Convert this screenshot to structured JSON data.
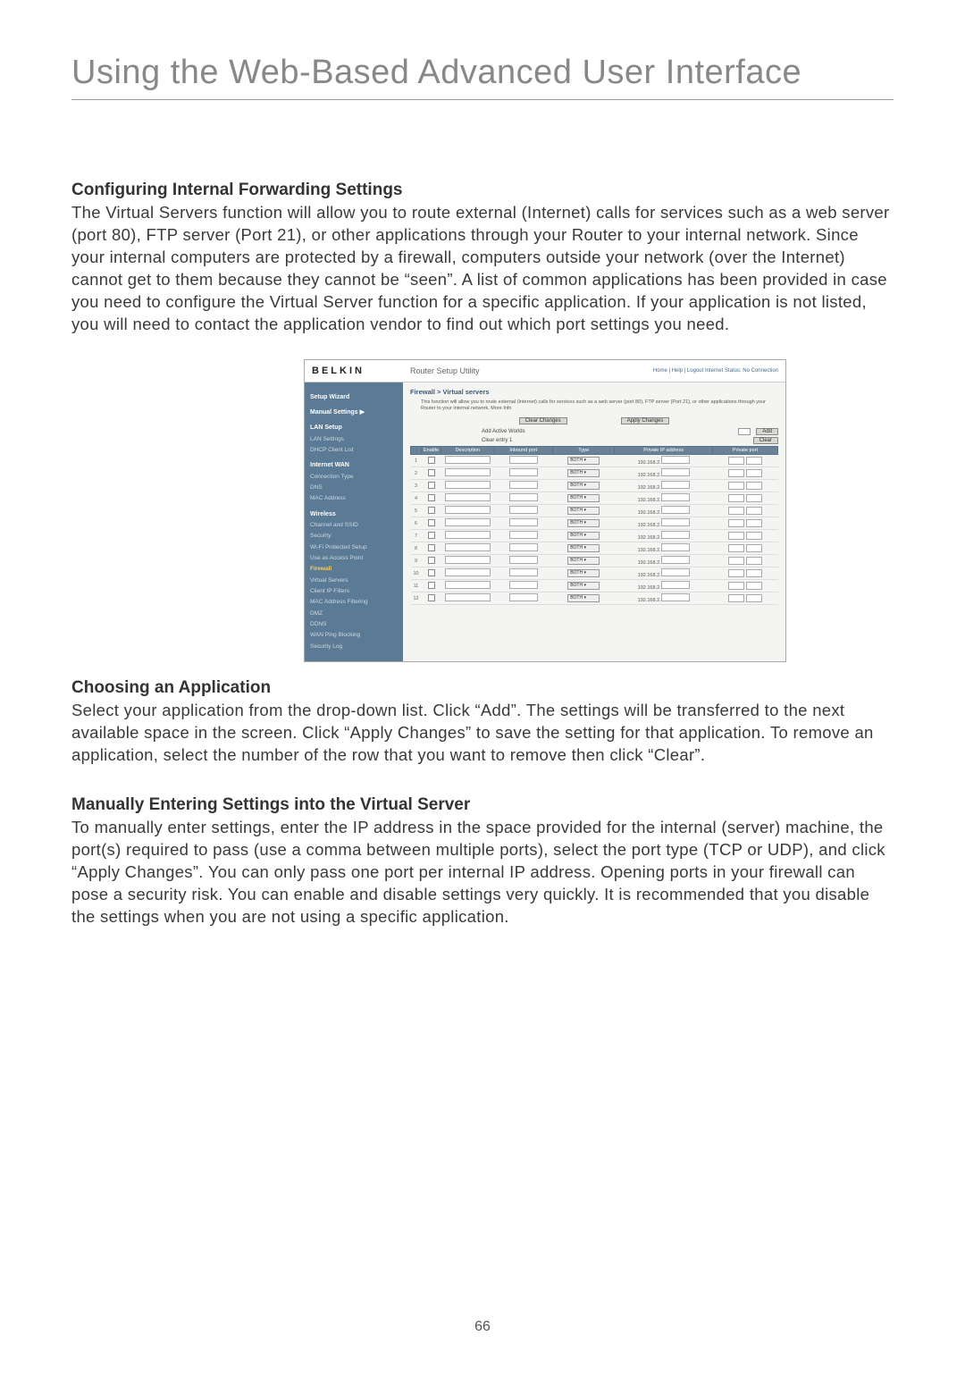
{
  "header": {
    "title": "Using the Web-Based Advanced User Interface"
  },
  "sections": {
    "s1": {
      "heading": "Configuring Internal Forwarding Settings",
      "body": "The Virtual Servers function will allow you to route external (Internet) calls for services such as a web server (port 80), FTP server (Port 21), or other applications through your Router to your internal network. Since your internal computers are protected by a firewall, computers outside your network (over the Internet) cannot get to them because they cannot be “seen”. A list of common applications has been provided in case you need to configure the Virtual Server function for a specific application. If your application is not listed, you will need to contact the application vendor to find out which port settings you need."
    },
    "s2": {
      "heading": "Choosing an Application",
      "body": "Select your application from the drop-down list. Click “Add”. The settings will be transferred to the next available space in the screen. Click “Apply Changes” to save the setting for that application. To remove an application, select the number of the row that you want to remove then click “Clear”."
    },
    "s3": {
      "heading": "Manually Entering Settings into the Virtual Server",
      "body": "To manually enter settings, enter the IP address in the space provided for the internal (server) machine, the port(s) required to pass (use a comma between multiple ports), select the port type (TCP or UDP), and click “Apply Changes”. You can only pass one port per internal IP address. Opening ports in your firewall can pose a security risk. You can enable and disable settings very quickly. It is recommended that you disable the settings when you are not using a specific application."
    }
  },
  "screenshot": {
    "brand": "BELKIN",
    "utility_title": "Router Setup Utility",
    "toplinks": "Home | Help | Logout    Internet Status: No Connection",
    "breadcrumb": "Firewall > Virtual servers",
    "desc": "This function will allow you to route external (Internet) calls for services such as a web server (port 80), FTP server (Port 21), or other applications through your Router to your internal network. More Info",
    "buttons": {
      "clear_changes": "Clear Changes",
      "apply_changes": "Apply Changes",
      "add": "Add",
      "clear": "Clear"
    },
    "labels": {
      "add_active": "Add Active Worlds",
      "clear_entry": "Clear entry  1"
    },
    "table": {
      "headers": [
        "",
        "Enable",
        "Description",
        "Inbound port",
        "Type",
        "Private IP address",
        "Private port"
      ],
      "type_value": "BOTH",
      "ip_prefix": "192.168.2.",
      "row_count": 12
    },
    "sidebar": {
      "items": [
        {
          "t": "Setup Wizard",
          "cls": "sb-head"
        },
        {
          "t": "",
          "cls": "sb-item"
        },
        {
          "t": "Manual Settings ▶",
          "cls": "sb-head"
        },
        {
          "t": "LAN Setup",
          "cls": "sb-head"
        },
        {
          "t": "LAN Settings",
          "cls": "sb-item"
        },
        {
          "t": "DHCP Client List",
          "cls": "sb-item"
        },
        {
          "t": "Internet WAN",
          "cls": "sb-head"
        },
        {
          "t": "Connection Type",
          "cls": "sb-item"
        },
        {
          "t": "DNS",
          "cls": "sb-item"
        },
        {
          "t": "MAC Address",
          "cls": "sb-item"
        },
        {
          "t": "Wireless",
          "cls": "sb-head"
        },
        {
          "t": "Channel and SSID",
          "cls": "sb-item"
        },
        {
          "t": "Security",
          "cls": "sb-item"
        },
        {
          "t": "Wi-Fi Protected Setup",
          "cls": "sb-item"
        },
        {
          "t": "Use as Access Point",
          "cls": "sb-item"
        },
        {
          "t": "Firewall",
          "cls": "sb-highlight"
        },
        {
          "t": "Virtual Servers",
          "cls": "sb-item"
        },
        {
          "t": "Client IP Filters",
          "cls": "sb-item"
        },
        {
          "t": "MAC Address Filtering",
          "cls": "sb-item"
        },
        {
          "t": "DMZ",
          "cls": "sb-item"
        },
        {
          "t": "DDNS",
          "cls": "sb-item"
        },
        {
          "t": "WAN Ping Blocking",
          "cls": "sb-item"
        },
        {
          "t": "Security Log",
          "cls": "sb-item"
        }
      ]
    }
  },
  "page_number": "66"
}
